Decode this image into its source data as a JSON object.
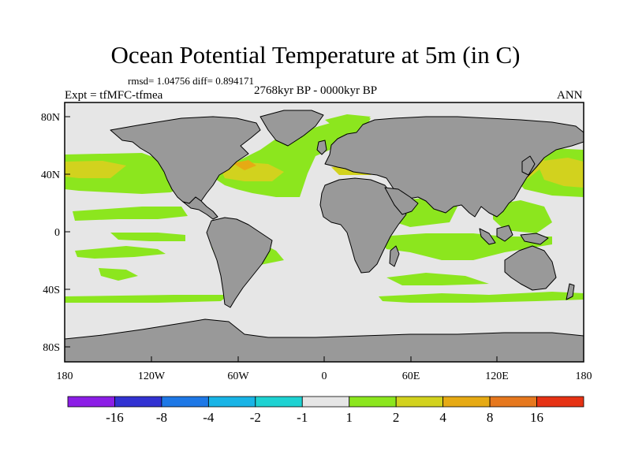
{
  "title": "Ocean Potential Temperature at 5m (in C)",
  "stats": "rmsd= 1.04756 diff= 0.894171",
  "experiment": "Expt = tfMFC-tfmea",
  "period": "2768kyr BP - 0000kyr BP",
  "season": "ANN",
  "colors": {
    "land": "#999999",
    "background_ocean": "#e6e6e6",
    "coastline": "#000000"
  },
  "lon_ticks": [
    "180",
    "120W",
    "60W",
    "0",
    "60E",
    "120E",
    "180"
  ],
  "lat_ticks": [
    "80N",
    "40N",
    "0",
    "40S",
    "80S"
  ],
  "colorbar": {
    "colors": [
      "#8c1ee6",
      "#3232d2",
      "#1e78e6",
      "#19b4e6",
      "#1ed2d2",
      "#e6e6e6",
      "#8ce61e",
      "#d2d21e",
      "#e6aa14",
      "#e6781e",
      "#e63214"
    ],
    "labels": [
      "-16",
      "-8",
      "-4",
      "-2",
      "-1",
      "1",
      "2",
      "4",
      "8",
      "16"
    ]
  }
}
